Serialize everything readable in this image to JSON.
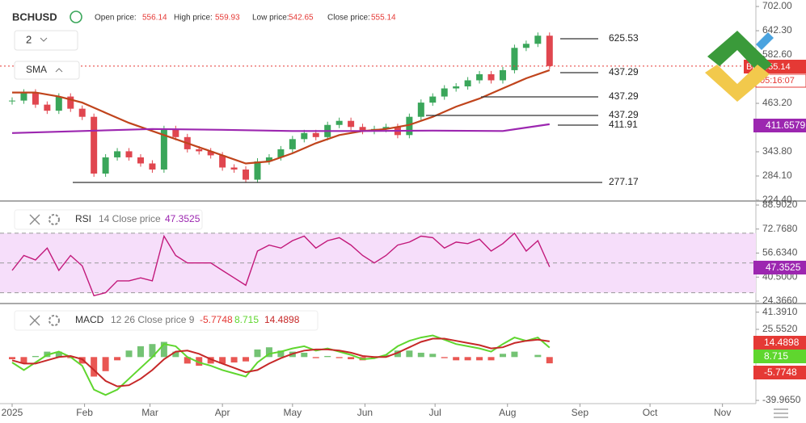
{
  "chart_data": [
    {
      "type": "candlestick",
      "title": "BCHUSD",
      "stats": [
        {
          "label": "Open price:",
          "value": 556.14
        },
        {
          "label": "High price:",
          "value": 559.93
        },
        {
          "label": "Low price:",
          "value": 542.65
        },
        {
          "label": "Close price:",
          "value": 555.14
        }
      ],
      "interval": "2",
      "indicator": "SMA",
      "x": [
        0,
        5,
        10,
        15,
        20,
        25,
        30,
        35,
        40,
        45,
        50,
        55,
        60,
        65,
        70,
        75,
        80,
        85,
        90,
        95,
        100,
        105,
        110,
        115,
        120,
        125,
        130,
        135,
        140,
        145,
        150,
        155,
        160,
        165,
        170,
        175,
        180,
        185,
        190,
        195,
        200,
        205,
        210,
        215,
        220,
        225,
        230
      ],
      "values": [
        470,
        490,
        460,
        445,
        480,
        450,
        430,
        290,
        330,
        345,
        330,
        315,
        300,
        400,
        380,
        350,
        345,
        335,
        305,
        300,
        275,
        320,
        330,
        350,
        375,
        390,
        380,
        410,
        420,
        405,
        395,
        400,
        405,
        385,
        430,
        465,
        480,
        500,
        505,
        520,
        535,
        520,
        545,
        600,
        610,
        630,
        555.14
      ],
      "up_color": "#3aa65a",
      "down_color": "#e0464f",
      "overlays": [
        {
          "color": "#c0441c",
          "x": [
            0,
            10,
            20,
            30,
            40,
            50,
            60,
            70,
            80,
            90,
            100,
            110,
            120,
            130,
            140,
            150,
            160,
            170,
            180,
            190,
            200,
            210,
            220,
            230
          ],
          "values": [
            490,
            490,
            480,
            465,
            440,
            415,
            395,
            375,
            355,
            335,
            315,
            320,
            340,
            365,
            385,
            395,
            400,
            410,
            430,
            455,
            475,
            500,
            525,
            545
          ]
        },
        {
          "color": "#9c27b0",
          "x": [
            0,
            30,
            60,
            90,
            120,
            150,
            180,
            210,
            230
          ],
          "values": [
            390,
            395,
            400,
            398,
            395,
            395,
            396,
            395,
            411.66
          ]
        }
      ],
      "sma_value": 411.6579,
      "bid_label": "Bid",
      "countdown": "05:16:07",
      "annotations": [
        625.53,
        437.29,
        437.29,
        437.29,
        411.91,
        277.17
      ],
      "xlim": [
        -5.19,
        318.3
      ],
      "xticks": [
        {
          "value": 0,
          "label": "2025"
        },
        {
          "value": 31,
          "label": "Feb"
        },
        {
          "value": 59,
          "label": "Mar"
        },
        {
          "value": 90,
          "label": "Apr"
        },
        {
          "value": 120,
          "label": "May"
        },
        {
          "value": 151,
          "label": "Jun"
        },
        {
          "value": 181,
          "label": "Jul"
        },
        {
          "value": 212,
          "label": "Aug"
        },
        {
          "value": 243,
          "label": "Sep"
        },
        {
          "value": 273,
          "label": "Oct"
        },
        {
          "value": 304,
          "label": "Nov"
        }
      ],
      "ylim": [
        224.4,
        718
      ],
      "yticks": [
        {
          "value": 702,
          "label": "702.00"
        },
        {
          "value": 642.3,
          "label": "642.30"
        },
        {
          "value": 582.6,
          "label": "582.60"
        },
        {
          "value": 463.2,
          "label": "463.20"
        },
        {
          "value": 343.8,
          "label": "343.80"
        },
        {
          "value": 284.1,
          "label": "284.10"
        },
        {
          "value": 224.4,
          "label": "224.40"
        }
      ]
    },
    {
      "type": "line",
      "title": "RSI",
      "params": "14 Close price",
      "x": [
        0,
        5,
        10,
        15,
        20,
        25,
        30,
        35,
        40,
        45,
        50,
        55,
        60,
        65,
        70,
        75,
        80,
        85,
        90,
        95,
        100,
        105,
        110,
        115,
        120,
        125,
        130,
        135,
        140,
        145,
        150,
        155,
        160,
        165,
        170,
        175,
        180,
        185,
        190,
        195,
        200,
        205,
        210,
        215,
        220,
        225,
        230
      ],
      "values": [
        45,
        55,
        52,
        60,
        45,
        55,
        48,
        28,
        30,
        38,
        38,
        40,
        38,
        68,
        55,
        50,
        50,
        50,
        45,
        40,
        35,
        58,
        62,
        60,
        65,
        68,
        60,
        65,
        67,
        62,
        55,
        50,
        55,
        62,
        64,
        68,
        67,
        60,
        64,
        63,
        66,
        58,
        63,
        70,
        58,
        65,
        47.3525
      ],
      "color": "#c2187a",
      "band_color": "#f6defa",
      "levels": [
        30,
        50,
        70
      ],
      "ylim": [
        24.366,
        88.902
      ],
      "yticks": [
        {
          "value": 88.902,
          "label": "88.9020"
        },
        {
          "value": 72.768,
          "label": "72.7680"
        },
        {
          "value": 56.634,
          "label": "56.6340"
        },
        {
          "value": 40.5,
          "label": "40.5000"
        },
        {
          "value": 24.366,
          "label": "24.3660"
        }
      ]
    },
    {
      "type": "macd",
      "title": "MACD",
      "params": "12 26 Close price 9",
      "x": [
        0,
        5,
        10,
        15,
        20,
        25,
        30,
        35,
        40,
        45,
        50,
        55,
        60,
        65,
        70,
        75,
        80,
        85,
        90,
        95,
        100,
        105,
        110,
        115,
        120,
        125,
        130,
        135,
        140,
        145,
        150,
        155,
        160,
        165,
        170,
        175,
        180,
        185,
        190,
        195,
        200,
        205,
        210,
        215,
        220,
        225,
        230
      ],
      "series": [
        {
          "color": "#e53935",
          "up_color": "#5cb85c",
          "values": [
            -2,
            -6,
            1,
            5,
            5,
            -1,
            -6,
            -18,
            -13,
            -3,
            6,
            10,
            12,
            14,
            5,
            -6,
            -8,
            -6,
            -6,
            -5,
            -4,
            7,
            9,
            6,
            5,
            4,
            -1,
            1,
            -1,
            -2,
            -3,
            -1,
            2,
            6,
            6,
            4,
            3,
            -1,
            -3,
            -3,
            -3,
            -3,
            3,
            5,
            0,
            2,
            -5.7748
          ]
        },
        {
          "color": "#5fd62e",
          "values": [
            -5,
            -12,
            -5,
            2,
            5,
            0,
            -8,
            -30,
            -35,
            -30,
            -20,
            -10,
            0,
            12,
            10,
            0,
            -5,
            -8,
            -12,
            -15,
            -18,
            -5,
            3,
            5,
            8,
            10,
            6,
            8,
            5,
            2,
            -2,
            -1,
            2,
            10,
            15,
            18,
            20,
            16,
            12,
            10,
            8,
            5,
            12,
            18,
            15,
            18,
            8.715
          ]
        },
        {
          "color": "#c62828",
          "values": [
            -3,
            -6,
            -6,
            -3,
            0,
            1,
            -2,
            -12,
            -22,
            -27,
            -26,
            -20,
            -12,
            -2,
            5,
            6,
            3,
            -2,
            -6,
            -10,
            -14,
            -12,
            -6,
            -1,
            3,
            6,
            7,
            7,
            6,
            4,
            1,
            0,
            0,
            4,
            9,
            14,
            17,
            17,
            15,
            13,
            11,
            8,
            9,
            13,
            15,
            16,
            14.4898
          ]
        }
      ],
      "ylim": [
        -42.95,
        46.4
      ],
      "yticks": [
        {
          "value": 41.391,
          "label": "41.3910"
        },
        {
          "value": 25.552,
          "label": "25.5520"
        },
        {
          "value": -39.965,
          "label": "-39.9650"
        }
      ]
    }
  ]
}
